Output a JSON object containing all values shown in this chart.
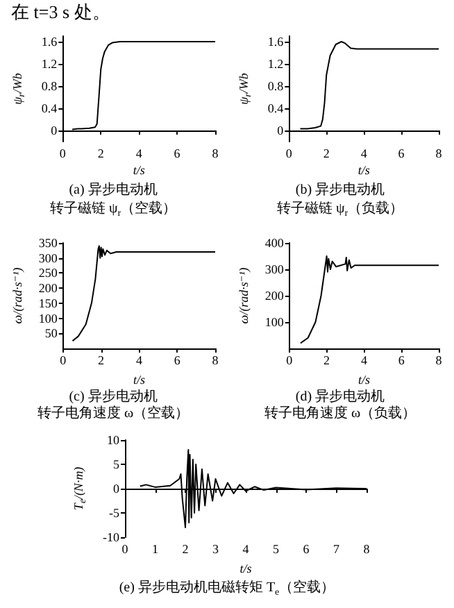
{
  "chart_data": [
    {
      "type": "line",
      "title": "(a) 异步电动机",
      "subtitle": "转子磁链 ψ$_{r}$（空载）",
      "annotations": [
        "在 t=3 s 处。"
      ],
      "xlabel": "t/s",
      "ylabel": "ψ$_{r}$/Wb",
      "xlim": [
        0,
        8
      ],
      "ylim": [
        -0.2,
        1.7
      ],
      "xticks": [
        0,
        2,
        4,
        6,
        8
      ],
      "yticks": [
        0,
        0.4,
        0.8,
        1.2,
        1.6
      ],
      "marker": "none",
      "series": [
        {
          "color": "#000000",
          "x": [
            0.5,
            0.8,
            1.0,
            1.4,
            1.7,
            1.8,
            1.9,
            2.0,
            2.1,
            2.2,
            2.4,
            2.6,
            3.0,
            3.5,
            8
          ],
          "values": [
            0.02,
            0.03,
            0.03,
            0.04,
            0.06,
            0.12,
            0.6,
            1.1,
            1.3,
            1.42,
            1.54,
            1.58,
            1.6,
            1.6,
            1.6
          ]
        }
      ]
    },
    {
      "type": "line",
      "title": "(b) 异步电动机",
      "subtitle": "转子磁链 ψ$_{r}$（负载）",
      "xlabel": "t/s",
      "ylabel": "ψ$_{r}$/Wb",
      "xlim": [
        0,
        8
      ],
      "ylim": [
        -0.2,
        1.7
      ],
      "xticks": [
        0,
        2,
        4,
        6,
        8
      ],
      "yticks": [
        0,
        0.4,
        0.8,
        1.2,
        1.6
      ],
      "marker": "none",
      "series": [
        {
          "color": "#000000",
          "x": [
            0.6,
            1.0,
            1.4,
            1.7,
            1.8,
            1.9,
            2.0,
            2.2,
            2.5,
            2.8,
            3.0,
            3.3,
            3.6,
            8
          ],
          "values": [
            0.03,
            0.03,
            0.05,
            0.08,
            0.2,
            0.5,
            1.0,
            1.35,
            1.55,
            1.6,
            1.57,
            1.48,
            1.47,
            1.47
          ]
        }
      ]
    },
    {
      "type": "line",
      "title": "(c) 异步电动机",
      "subtitle": "转子电角速度 ω（空载）",
      "xlabel": "t/s",
      "ylabel": "ω/(rad·s⁻¹)",
      "xlim": [
        0,
        8
      ],
      "ylim": [
        0,
        350
      ],
      "xticks": [
        0,
        2,
        4,
        6,
        8
      ],
      "yticks": [
        50,
        100,
        150,
        200,
        250,
        300,
        350
      ],
      "marker": "none",
      "series": [
        {
          "color": "#000000",
          "x": [
            0.5,
            0.8,
            1.2,
            1.5,
            1.7,
            1.85,
            1.9,
            1.95,
            2.0,
            2.05,
            2.1,
            2.2,
            2.3,
            2.5,
            2.8,
            8
          ],
          "values": [
            25,
            40,
            80,
            150,
            230,
            330,
            340,
            300,
            335,
            305,
            330,
            310,
            325,
            315,
            320,
            320
          ]
        }
      ]
    },
    {
      "type": "line",
      "title": "(d) 异步电动机",
      "subtitle": "转子电角速度 ω（负载）",
      "xlabel": "t/s",
      "ylabel": "ω/(rad·s⁻¹)",
      "xlim": [
        0,
        8
      ],
      "ylim": [
        0,
        400
      ],
      "xticks": [
        0,
        2,
        4,
        6,
        8
      ],
      "yticks": [
        100,
        200,
        300,
        400
      ],
      "marker": "none",
      "series": [
        {
          "color": "#000000",
          "x": [
            0.6,
            1.0,
            1.4,
            1.7,
            1.9,
            2.0,
            2.05,
            2.1,
            2.2,
            2.3,
            2.5,
            3.0,
            3.05,
            3.1,
            3.2,
            3.3,
            3.5,
            4,
            8
          ],
          "values": [
            20,
            40,
            100,
            200,
            300,
            350,
            290,
            340,
            300,
            330,
            310,
            320,
            345,
            295,
            335,
            305,
            315,
            315,
            315
          ]
        }
      ]
    },
    {
      "type": "line",
      "title": "(e) 异步电动机电磁转矩 T$_{e}$（空载）",
      "xlabel": "t/s",
      "ylabel": "T$_{e}$/(N·m)",
      "xlim": [
        0,
        8
      ],
      "ylim": [
        -10,
        10
      ],
      "xticks": [
        0,
        1,
        2,
        3,
        4,
        5,
        6,
        7,
        8
      ],
      "yticks": [
        -10,
        -5,
        0,
        5,
        10
      ],
      "marker": "none",
      "series": [
        {
          "color": "#000000",
          "x": [
            0.5,
            0.7,
            1.0,
            1.5,
            1.8,
            1.85,
            1.9,
            2.0,
            2.05,
            2.1,
            2.12,
            2.15,
            2.2,
            2.25,
            2.3,
            2.35,
            2.45,
            2.55,
            2.65,
            2.75,
            2.9,
            3.0,
            3.2,
            3.4,
            3.6,
            3.8,
            4.0,
            4.3,
            4.6,
            5,
            6,
            7,
            8
          ],
          "values": [
            0.5,
            0.8,
            0.3,
            0.6,
            2,
            3,
            -2,
            -8,
            2,
            8,
            -7,
            7,
            -6,
            6,
            -5,
            5,
            -4.5,
            4,
            -3.5,
            3,
            -2.5,
            2,
            -1.5,
            1.2,
            -1,
            0.8,
            -0.5,
            0.4,
            -0.3,
            0.2,
            -0.2,
            0.1,
            0
          ]
        }
      ]
    }
  ]
}
